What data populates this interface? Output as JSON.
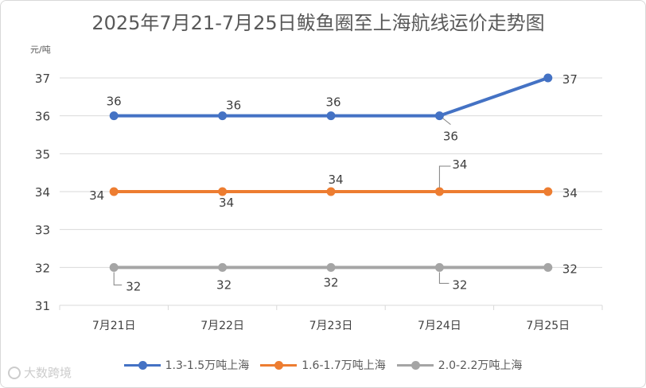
{
  "chart_data": {
    "type": "line",
    "title": "2025年7月21-7月25日鲅鱼圈至上海航线运价走势图",
    "ylabel": "元/吨",
    "xlabel": "",
    "categories": [
      "7月21日",
      "7月22日",
      "7月23日",
      "7月24日",
      "7月25日"
    ],
    "ylim": [
      31,
      37
    ],
    "yticks": [
      31,
      32,
      33,
      34,
      35,
      36,
      37
    ],
    "grid": true,
    "legend_position": "bottom",
    "series": [
      {
        "name": "1.3-1.5万吨上海",
        "color": "#4472C4",
        "values": [
          36,
          36,
          36,
          36,
          37
        ]
      },
      {
        "name": "1.6-1.7万吨上海",
        "color": "#ED7D31",
        "values": [
          34,
          34,
          34,
          34,
          34
        ]
      },
      {
        "name": "2.0-2.2万吨上海",
        "color": "#A5A5A5",
        "values": [
          32,
          32,
          32,
          32,
          32
        ]
      }
    ]
  },
  "watermark": {
    "text": "大数跨境"
  }
}
